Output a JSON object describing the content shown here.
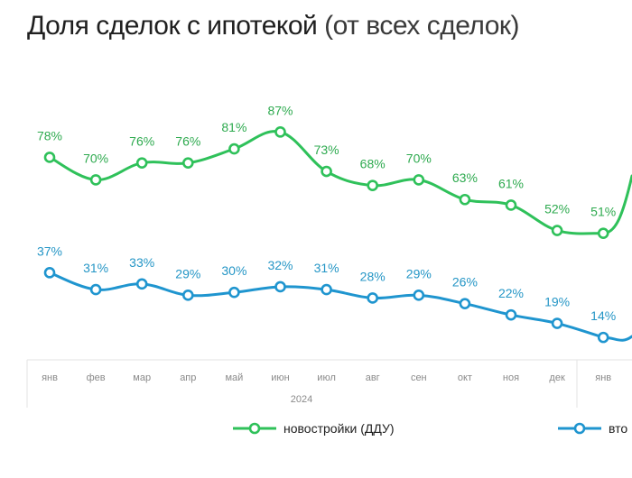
{
  "title": {
    "main": "Доля сделок с ипотекой",
    "sub": "(от всех сделок)"
  },
  "chart_data": {
    "type": "line",
    "title": "Доля сделок с ипотекой (от всех сделок)",
    "categories": [
      "янв",
      "фев",
      "мар",
      "апр",
      "май",
      "июн",
      "июл",
      "авг",
      "сен",
      "окт",
      "ноя",
      "дек",
      "янв"
    ],
    "year_label": "2024",
    "ylim": [
      0,
      100
    ],
    "series": [
      {
        "name": "новостройки (ДДУ)",
        "color": "#2fc15a",
        "values": [
          78,
          70,
          76,
          76,
          81,
          87,
          73,
          68,
          70,
          63,
          61,
          52,
          51
        ],
        "labels": [
          "78%",
          "70%",
          "76%",
          "76%",
          "81%",
          "87%",
          "73%",
          "68%",
          "70%",
          "63%",
          "61%",
          "52%",
          "51%"
        ]
      },
      {
        "name": "вто",
        "color": "#1f95cf",
        "values": [
          37,
          31,
          33,
          29,
          30,
          32,
          31,
          28,
          29,
          26,
          22,
          19,
          14
        ],
        "labels": [
          "37%",
          "31%",
          "33%",
          "29%",
          "30%",
          "32%",
          "31%",
          "28%",
          "29%",
          "26%",
          "22%",
          "19%",
          "14%"
        ]
      }
    ]
  }
}
